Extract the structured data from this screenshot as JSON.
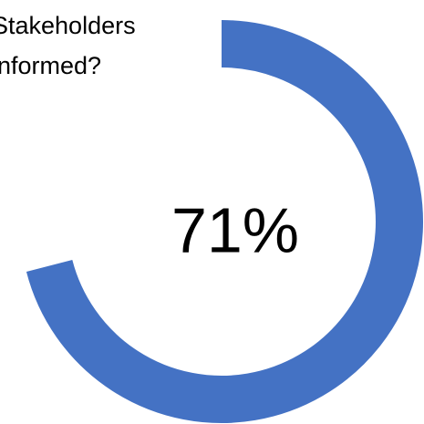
{
  "chart_data": {
    "type": "donut",
    "title": "Stakeholders informed?",
    "values": [
      71
    ],
    "value_labels": [
      "71%"
    ],
    "color": "#4472c4"
  }
}
